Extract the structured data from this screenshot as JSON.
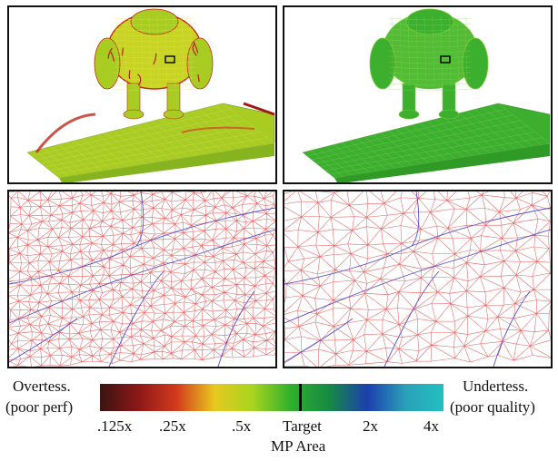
{
  "panels": {
    "top_left": "robot-heatmap-poor-distribution",
    "top_right": "robot-heatmap-good-distribution",
    "bottom_left": "mesh-closeup-dense",
    "bottom_right": "mesh-closeup-uniform"
  },
  "legend": {
    "left_line1": "Overtess.",
    "left_line2": "(poor perf)",
    "right_line1": "Undertess.",
    "right_line2": "(poor quality)",
    "ticks": [
      ".125x",
      ".25x",
      ".5x",
      "Target",
      "2x",
      "4x"
    ],
    "axis_label": "MP Area"
  },
  "colormap": [
    "#3a1410",
    "#8c1818",
    "#d23a1c",
    "#e8c820",
    "#a8d41e",
    "#2fb02c",
    "#168a44",
    "#1c3fae",
    "#2aa0b8",
    "#22c0c0"
  ],
  "target_marker_color": "#000000",
  "mesh_colors": {
    "wire": "#e86060",
    "seam": "#5050d0"
  }
}
